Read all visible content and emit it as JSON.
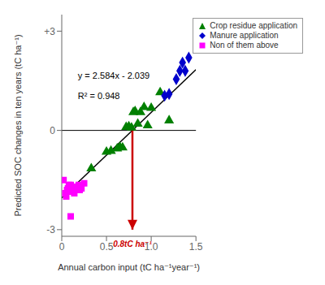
{
  "chart_data": {
    "type": "scatter",
    "xlabel": "Annual carbon input (tC ha⁻¹year⁻¹)",
    "ylabel": "Predicted SOC changes in ten years (tC ha⁻¹)",
    "xlim": [
      0,
      1.5
    ],
    "ylim": [
      -3.2,
      3.5
    ],
    "xticks": [
      0,
      0.5,
      {
        "value": 1,
        "label": "1.0"
      },
      1.5
    ],
    "yticks": [
      -3,
      0,
      {
        "value": 3,
        "label": "+3"
      }
    ],
    "legend": "upper right",
    "hline": 0,
    "series": [
      {
        "type": "line",
        "color": "#000000",
        "x": [
          0,
          1.5
        ],
        "values": [
          -2.039,
          1.837
        ]
      },
      {
        "name": "Crop residue application",
        "type": "scatter",
        "marker": "triangle",
        "color": "#008000",
        "x": [
          0.33,
          0.5,
          0.55,
          0.62,
          0.65,
          0.68,
          0.72,
          0.75,
          0.78,
          0.8,
          0.82,
          0.85,
          0.88,
          0.92,
          0.96,
          1.0,
          1.1,
          1.2
        ],
        "values": [
          -1.15,
          -0.65,
          -0.62,
          -0.55,
          -0.5,
          -0.52,
          0.1,
          0.12,
          0.08,
          0.55,
          0.58,
          0.2,
          0.55,
          0.7,
          0.15,
          0.68,
          1.15,
          0.3
        ]
      },
      {
        "name": "Manure application",
        "type": "scatter",
        "marker": "diamond",
        "color": "#0000cc",
        "x": [
          1.15,
          1.2,
          1.28,
          1.32,
          1.35,
          1.38,
          1.42
        ],
        "values": [
          1.05,
          1.1,
          1.55,
          1.8,
          2.05,
          1.8,
          2.2
        ]
      },
      {
        "name": "Non of them above",
        "type": "scatter",
        "marker": "square",
        "color": "#ff00ff",
        "x": [
          0.02,
          0.04,
          0.05,
          0.06,
          0.07,
          0.08,
          0.09,
          0.1,
          0.11,
          0.12,
          0.13,
          0.14,
          0.15,
          0.16,
          0.17,
          0.18,
          0.19,
          0.2,
          0.22,
          0.25,
          0.1
        ],
        "values": [
          -1.5,
          -1.9,
          -2.0,
          -1.8,
          -1.75,
          -1.65,
          -1.7,
          -1.65,
          -1.85,
          -1.75,
          -1.8,
          -1.9,
          -1.7,
          -1.75,
          -1.8,
          -1.7,
          -1.65,
          -1.8,
          -1.75,
          -1.6,
          -2.6
        ]
      }
    ],
    "annotations": [
      {
        "text": "y = 2.584x - 2.039",
        "x": 0.18,
        "y": 1.55
      },
      {
        "text": "R² = 0.948",
        "x": 0.18,
        "y": 0.95
      },
      {
        "text": "0.8tC ha⁻¹",
        "x": 0.79,
        "y": -3.35,
        "color": "#cc0000"
      }
    ],
    "arrows": [
      {
        "x": 0.79,
        "y_start": 0.0,
        "y_end": -3.0,
        "color": "#cc0000"
      }
    ]
  }
}
